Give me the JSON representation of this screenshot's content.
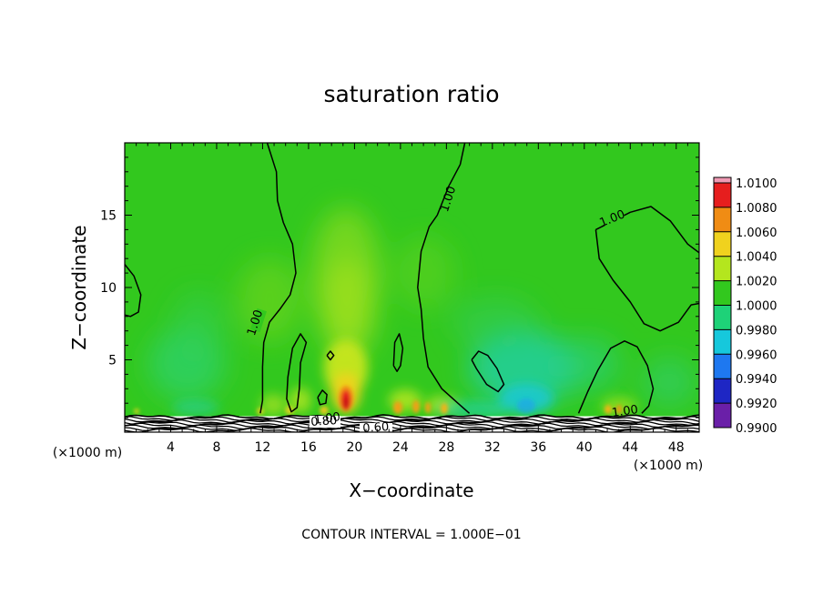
{
  "chart_data": {
    "type": "heatmap",
    "title": "saturation ratio",
    "xlabel": "X−coordinate",
    "ylabel": "Z−coordinate",
    "x_unit": "(×1000 m)",
    "xlim": [
      0,
      50
    ],
    "ylim": [
      0,
      20
    ],
    "x_ticks": [
      4,
      8,
      12,
      16,
      20,
      24,
      28,
      32,
      36,
      40,
      44,
      48
    ],
    "y_ticks": [
      5,
      10,
      15
    ],
    "colorbar": {
      "levels": [
        "0.9900",
        "0.9920",
        "0.9940",
        "0.9960",
        "0.9980",
        "1.0000",
        "1.0020",
        "1.0040",
        "1.0060",
        "1.0080",
        "1.0100"
      ],
      "colors": [
        "#6a1fa8",
        "#1e26c4",
        "#1e78f0",
        "#16c8dc",
        "#1ed278",
        "#32c81e",
        "#b4e61e",
        "#f0d21e",
        "#f08c14",
        "#e61e1e",
        "#f09ab4"
      ]
    },
    "contour_labels": [
      "1.00",
      "1.00",
      "1.00",
      "1.00",
      "1.00",
      "0.80",
      "0.60"
    ],
    "footnote": "CONTOUR INTERVAL = 1.000E−01",
    "contours_sat": [
      [
        [
          12.4,
          20
        ],
        [
          13.2,
          18
        ],
        [
          13.3,
          16
        ],
        [
          13.8,
          14.5
        ],
        [
          14.6,
          13
        ],
        [
          14.9,
          11
        ],
        [
          14.4,
          9.5
        ],
        [
          13.5,
          8.5
        ],
        [
          12.6,
          7.6
        ],
        [
          12.1,
          6.2
        ],
        [
          12.0,
          4.5
        ],
        [
          12.0,
          2.2
        ],
        [
          11.8,
          1.3
        ]
      ],
      [
        [
          29.6,
          20
        ],
        [
          29.2,
          18.5
        ],
        [
          28.2,
          17
        ],
        [
          27.2,
          15
        ],
        [
          26.5,
          14.2
        ],
        [
          25.8,
          12.5
        ],
        [
          25.5,
          10
        ],
        [
          25.8,
          8.5
        ],
        [
          26.0,
          6.5
        ],
        [
          26.4,
          4.5
        ],
        [
          27.6,
          3.0
        ],
        [
          29.0,
          2.0
        ],
        [
          30.0,
          1.3
        ]
      ],
      [
        [
          41.0,
          14
        ],
        [
          41.3,
          12.0
        ],
        [
          42.5,
          10.5
        ],
        [
          44.0,
          9.0
        ],
        [
          45.2,
          7.5
        ],
        [
          46.6,
          7.0
        ],
        [
          48.2,
          7.6
        ],
        [
          49.3,
          8.8
        ],
        [
          50,
          8.9
        ]
      ],
      [
        [
          41.0,
          14
        ],
        [
          42.5,
          14.6
        ],
        [
          44.0,
          15.2
        ],
        [
          45.8,
          15.6
        ],
        [
          47.5,
          14.6
        ],
        [
          49.0,
          13.0
        ],
        [
          50,
          12.4
        ]
      ],
      [
        [
          0,
          11.6
        ],
        [
          0.8,
          10.8
        ],
        [
          1.4,
          9.5
        ],
        [
          1.2,
          8.3
        ],
        [
          0.5,
          8.0
        ],
        [
          0,
          8.1
        ]
      ],
      [
        [
          39.5,
          1.3
        ],
        [
          40.3,
          2.8
        ],
        [
          41.2,
          4.3
        ],
        [
          42.3,
          5.8
        ],
        [
          43.5,
          6.3
        ],
        [
          44.6,
          5.9
        ],
        [
          45.5,
          4.6
        ],
        [
          46.0,
          3.0
        ],
        [
          45.6,
          1.8
        ],
        [
          45.0,
          1.3
        ]
      ],
      [
        [
          30.2,
          5.0
        ],
        [
          30.6,
          4.4
        ],
        [
          31.5,
          3.3
        ],
        [
          32.5,
          2.8
        ],
        [
          33.0,
          3.3
        ],
        [
          32.4,
          4.4
        ],
        [
          31.6,
          5.3
        ],
        [
          30.8,
          5.6
        ],
        [
          30.2,
          5.0
        ]
      ],
      [
        [
          14.2,
          3.8
        ],
        [
          14.6,
          5.8
        ],
        [
          15.3,
          6.8
        ],
        [
          15.8,
          6.2
        ],
        [
          15.3,
          4.8
        ],
        [
          15.2,
          3.0
        ],
        [
          15.0,
          1.7
        ],
        [
          14.5,
          1.4
        ],
        [
          14.1,
          2.3
        ],
        [
          14.2,
          3.8
        ]
      ],
      [
        [
          23.4,
          4.6
        ],
        [
          23.5,
          6.2
        ],
        [
          23.9,
          6.8
        ],
        [
          24.2,
          5.8
        ],
        [
          24.0,
          4.6
        ],
        [
          23.7,
          4.2
        ],
        [
          23.4,
          4.6
        ]
      ],
      [
        [
          16.8,
          2.4
        ],
        [
          17.2,
          2.9
        ],
        [
          17.6,
          2.6
        ],
        [
          17.5,
          2.0
        ],
        [
          17.0,
          1.9
        ],
        [
          16.8,
          2.4
        ]
      ],
      [
        [
          17.6,
          5.3
        ],
        [
          17.9,
          5.6
        ],
        [
          18.2,
          5.3
        ],
        [
          17.9,
          5.0
        ],
        [
          17.6,
          5.3
        ]
      ]
    ]
  }
}
